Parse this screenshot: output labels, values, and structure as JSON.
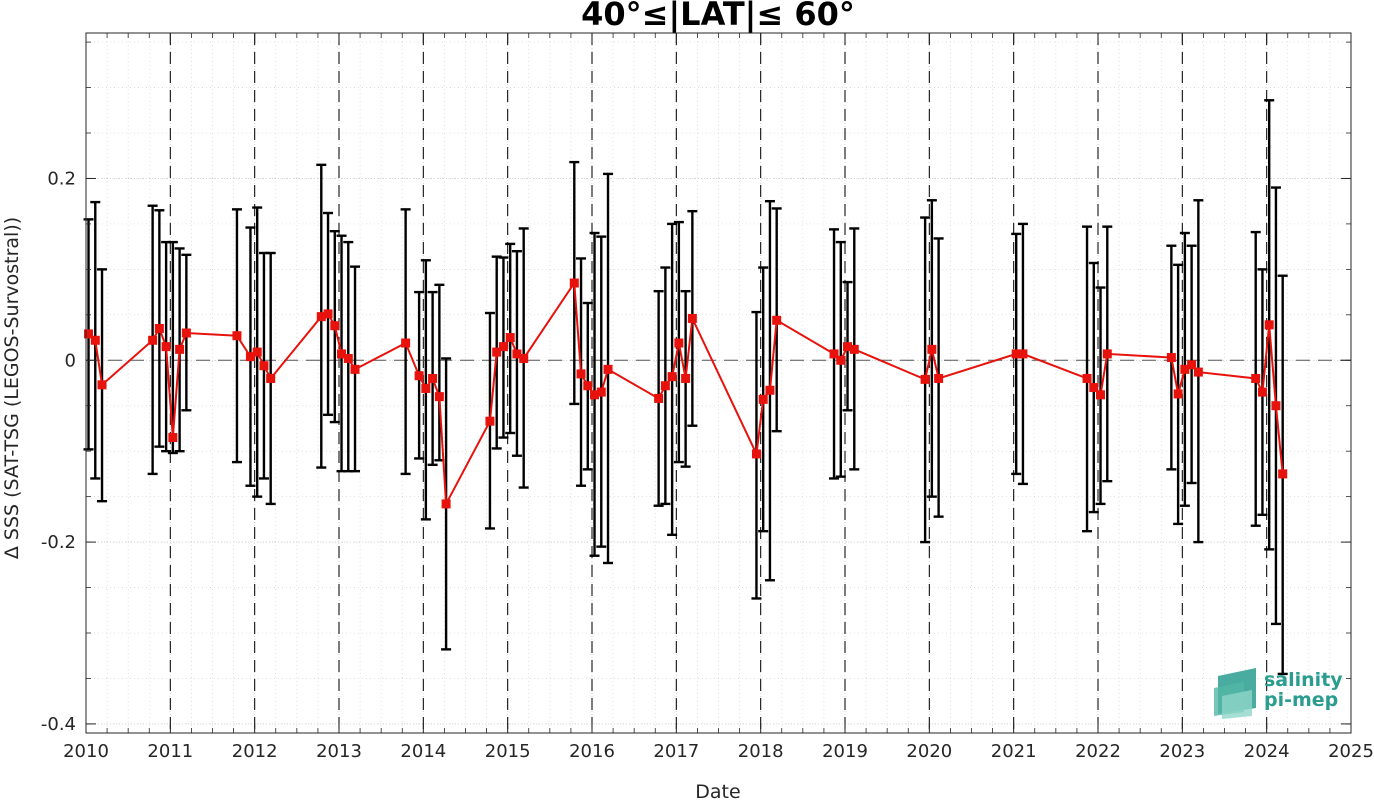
{
  "chart_data": {
    "type": "line",
    "title": "40°≤|LAT|≤ 60°",
    "xlabel": "Date",
    "ylabel": "Δ SSS (SAT-TSG (LEGOS-Survostral))",
    "xlim": [
      2010,
      2025
    ],
    "ylim": [
      -0.41,
      0.36
    ],
    "x_ticks": [
      "2010",
      "2011",
      "2012",
      "2013",
      "2014",
      "2015",
      "2016",
      "2017",
      "2018",
      "2019",
      "2020",
      "2021",
      "2022",
      "2023",
      "2024",
      "2025"
    ],
    "y_ticks": [
      {
        "value": 0.2,
        "label": "0.2"
      },
      {
        "value": 0,
        "label": "0"
      },
      {
        "value": -0.2,
        "label": "-0.2"
      },
      {
        "value": -0.4,
        "label": "-0.4"
      }
    ],
    "grid": true,
    "zero_line": 0,
    "year_divider_lines": true,
    "series": [
      {
        "color": "#e8120c",
        "errorbar_color": "#000000",
        "points": [
          {
            "x": 2010.03,
            "y": 0.029,
            "lo": -0.098,
            "hi": 0.155
          },
          {
            "x": 2010.11,
            "y": 0.022,
            "lo": -0.13,
            "hi": 0.174
          },
          {
            "x": 2010.19,
            "y": -0.027,
            "lo": -0.155,
            "hi": 0.1
          },
          {
            "x": 2010.79,
            "y": 0.022,
            "lo": -0.125,
            "hi": 0.17
          },
          {
            "x": 2010.87,
            "y": 0.035,
            "lo": -0.095,
            "hi": 0.165
          },
          {
            "x": 2010.95,
            "y": 0.015,
            "lo": -0.1,
            "hi": 0.13
          },
          {
            "x": 2011.03,
            "y": -0.085,
            "lo": -0.102,
            "hi": 0.13
          },
          {
            "x": 2011.11,
            "y": 0.012,
            "lo": -0.1,
            "hi": 0.123
          },
          {
            "x": 2011.19,
            "y": 0.03,
            "lo": -0.055,
            "hi": 0.116
          },
          {
            "x": 2011.79,
            "y": 0.027,
            "lo": -0.112,
            "hi": 0.166
          },
          {
            "x": 2011.95,
            "y": 0.004,
            "lo": -0.138,
            "hi": 0.146
          },
          {
            "x": 2012.03,
            "y": 0.009,
            "lo": -0.15,
            "hi": 0.168
          },
          {
            "x": 2012.11,
            "y": -0.006,
            "lo": -0.13,
            "hi": 0.118
          },
          {
            "x": 2012.19,
            "y": -0.02,
            "lo": -0.158,
            "hi": 0.118
          },
          {
            "x": 2012.79,
            "y": 0.048,
            "lo": -0.118,
            "hi": 0.215
          },
          {
            "x": 2012.87,
            "y": 0.051,
            "lo": -0.06,
            "hi": 0.162
          },
          {
            "x": 2012.95,
            "y": 0.038,
            "lo": -0.068,
            "hi": 0.142
          },
          {
            "x": 2013.03,
            "y": 0.007,
            "lo": -0.122,
            "hi": 0.137
          },
          {
            "x": 2013.11,
            "y": 0.002,
            "lo": -0.122,
            "hi": 0.13
          },
          {
            "x": 2013.19,
            "y": -0.01,
            "lo": -0.122,
            "hi": 0.103
          },
          {
            "x": 2013.79,
            "y": 0.019,
            "lo": -0.125,
            "hi": 0.166
          },
          {
            "x": 2013.95,
            "y": -0.017,
            "lo": -0.108,
            "hi": 0.075
          },
          {
            "x": 2014.03,
            "y": -0.031,
            "lo": -0.175,
            "hi": 0.11
          },
          {
            "x": 2014.11,
            "y": -0.02,
            "lo": -0.115,
            "hi": 0.075
          },
          {
            "x": 2014.19,
            "y": -0.04,
            "lo": -0.11,
            "hi": 0.083
          },
          {
            "x": 2014.27,
            "y": -0.158,
            "lo": -0.318,
            "hi": 0.002
          },
          {
            "x": 2014.79,
            "y": -0.067,
            "lo": -0.185,
            "hi": 0.052
          },
          {
            "x": 2014.87,
            "y": 0.009,
            "lo": -0.097,
            "hi": 0.114
          },
          {
            "x": 2014.95,
            "y": 0.015,
            "lo": -0.085,
            "hi": 0.113
          },
          {
            "x": 2015.03,
            "y": 0.025,
            "lo": -0.08,
            "hi": 0.128
          },
          {
            "x": 2015.11,
            "y": 0.007,
            "lo": -0.105,
            "hi": 0.12
          },
          {
            "x": 2015.19,
            "y": 0.002,
            "lo": -0.14,
            "hi": 0.145
          },
          {
            "x": 2015.79,
            "y": 0.085,
            "lo": -0.048,
            "hi": 0.218
          },
          {
            "x": 2015.87,
            "y": -0.015,
            "lo": -0.138,
            "hi": 0.112
          },
          {
            "x": 2015.95,
            "y": -0.028,
            "lo": -0.12,
            "hi": 0.063
          },
          {
            "x": 2016.03,
            "y": -0.038,
            "lo": -0.215,
            "hi": 0.14
          },
          {
            "x": 2016.11,
            "y": -0.035,
            "lo": -0.205,
            "hi": 0.136
          },
          {
            "x": 2016.19,
            "y": -0.01,
            "lo": -0.223,
            "hi": 0.205
          },
          {
            "x": 2016.79,
            "y": -0.042,
            "lo": -0.16,
            "hi": 0.076
          },
          {
            "x": 2016.87,
            "y": -0.028,
            "lo": -0.158,
            "hi": 0.102
          },
          {
            "x": 2016.95,
            "y": -0.018,
            "lo": -0.192,
            "hi": 0.15
          },
          {
            "x": 2017.03,
            "y": 0.019,
            "lo": -0.112,
            "hi": 0.152
          },
          {
            "x": 2017.11,
            "y": -0.02,
            "lo": -0.117,
            "hi": 0.076
          },
          {
            "x": 2017.19,
            "y": 0.046,
            "lo": -0.072,
            "hi": 0.164
          },
          {
            "x": 2017.95,
            "y": -0.103,
            "lo": -0.262,
            "hi": 0.053
          },
          {
            "x": 2018.03,
            "y": -0.043,
            "lo": -0.188,
            "hi": 0.102
          },
          {
            "x": 2018.11,
            "y": -0.033,
            "lo": -0.242,
            "hi": 0.175
          },
          {
            "x": 2018.19,
            "y": 0.044,
            "lo": -0.078,
            "hi": 0.167
          },
          {
            "x": 2018.87,
            "y": 0.007,
            "lo": -0.13,
            "hi": 0.144
          },
          {
            "x": 2018.95,
            "y": 0.0,
            "lo": -0.128,
            "hi": 0.13
          },
          {
            "x": 2019.03,
            "y": 0.015,
            "lo": -0.055,
            "hi": 0.086
          },
          {
            "x": 2019.11,
            "y": 0.012,
            "lo": -0.12,
            "hi": 0.145
          },
          {
            "x": 2019.95,
            "y": -0.021,
            "lo": -0.2,
            "hi": 0.157
          },
          {
            "x": 2020.03,
            "y": 0.012,
            "lo": -0.15,
            "hi": 0.176
          },
          {
            "x": 2020.11,
            "y": -0.02,
            "lo": -0.172,
            "hi": 0.134
          },
          {
            "x": 2021.03,
            "y": 0.007,
            "lo": -0.125,
            "hi": 0.139
          },
          {
            "x": 2021.11,
            "y": 0.007,
            "lo": -0.136,
            "hi": 0.15
          },
          {
            "x": 2021.87,
            "y": -0.02,
            "lo": -0.188,
            "hi": 0.147
          },
          {
            "x": 2021.95,
            "y": -0.03,
            "lo": -0.167,
            "hi": 0.107
          },
          {
            "x": 2022.03,
            "y": -0.038,
            "lo": -0.158,
            "hi": 0.08
          },
          {
            "x": 2022.11,
            "y": 0.007,
            "lo": -0.133,
            "hi": 0.147
          },
          {
            "x": 2022.87,
            "y": 0.003,
            "lo": -0.12,
            "hi": 0.126
          },
          {
            "x": 2022.95,
            "y": -0.037,
            "lo": -0.18,
            "hi": 0.105
          },
          {
            "x": 2023.03,
            "y": -0.01,
            "lo": -0.16,
            "hi": 0.14
          },
          {
            "x": 2023.11,
            "y": -0.005,
            "lo": -0.135,
            "hi": 0.126
          },
          {
            "x": 2023.19,
            "y": -0.013,
            "lo": -0.2,
            "hi": 0.176
          },
          {
            "x": 2023.87,
            "y": -0.02,
            "lo": -0.182,
            "hi": 0.141
          },
          {
            "x": 2023.95,
            "y": -0.035,
            "lo": -0.17,
            "hi": 0.1
          },
          {
            "x": 2024.03,
            "y": 0.039,
            "lo": -0.208,
            "hi": 0.286
          },
          {
            "x": 2024.11,
            "y": -0.05,
            "lo": -0.29,
            "hi": 0.19
          },
          {
            "x": 2024.19,
            "y": -0.125,
            "lo": -0.345,
            "hi": 0.093
          }
        ]
      }
    ]
  },
  "logo": {
    "line1": "salinity",
    "line2": "pi-mep"
  }
}
